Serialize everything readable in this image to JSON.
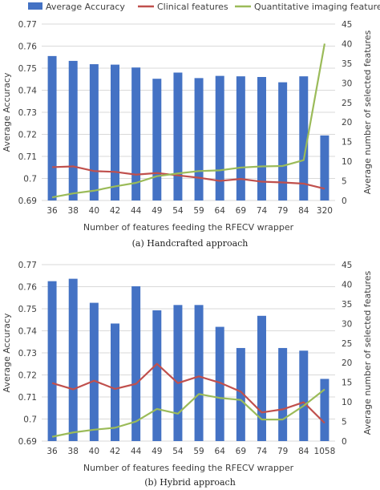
{
  "colors": {
    "bar": "#4472C4",
    "clinical": "#C0504D",
    "imaging": "#9BBB59",
    "grid": "#D9D9D9",
    "text": "#404040"
  },
  "legend": {
    "accuracy": "Average Accuracy",
    "clinical": "Clinical features",
    "imaging": "Quantitative imaging features"
  },
  "chart_data": [
    {
      "type": "bar",
      "caption": "(a) Handcrafted approach",
      "categories": [
        "36",
        "38",
        "40",
        "42",
        "44",
        "49",
        "54",
        "59",
        "64",
        "69",
        "74",
        "79",
        "84",
        "320"
      ],
      "xlabel": "Number of features feeding the RFECV wrapper",
      "ylabel": "Average Accuracy",
      "y2label": "Average number of selected features",
      "ylim": [
        0.69,
        0.77
      ],
      "yticks": [
        "0.69",
        "0.7",
        "0.71",
        "0.72",
        "0.73",
        "0.74",
        "0.75",
        "0.76",
        "0.77"
      ],
      "y2lim": [
        0,
        45
      ],
      "y2ticks": [
        "0",
        "5",
        "10",
        "15",
        "20",
        "25",
        "30",
        "35",
        "40",
        "45"
      ],
      "series": [
        {
          "name": "Average Accuracy",
          "type": "bar",
          "axis": "left",
          "values": [
            0.7555,
            0.7533,
            0.7518,
            0.7516,
            0.7503,
            0.7452,
            0.748,
            0.7455,
            0.7465,
            0.7463,
            0.746,
            0.7436,
            0.7463,
            0.7195
          ]
        },
        {
          "name": "Clinical features",
          "type": "line",
          "axis": "right",
          "values": [
            8.5,
            8.7,
            7.5,
            7.3,
            6.6,
            7.0,
            6.4,
            5.8,
            5.0,
            5.5,
            4.8,
            4.6,
            4.3,
            3.0
          ]
        },
        {
          "name": "Quantitative imaging features",
          "type": "line",
          "axis": "right",
          "values": [
            0.8,
            1.8,
            2.5,
            3.6,
            4.5,
            6.2,
            6.9,
            7.5,
            7.7,
            8.4,
            8.7,
            8.8,
            10.3,
            40.0
          ]
        }
      ]
    },
    {
      "type": "bar",
      "caption": "(b) Hybrid approach",
      "categories": [
        "36",
        "38",
        "40",
        "42",
        "44",
        "49",
        "54",
        "59",
        "64",
        "69",
        "74",
        "79",
        "84",
        "1058"
      ],
      "xlabel": "Number of features feeding the RFECV wrapper",
      "ylabel": "Average Accuracy",
      "y2label": "Average number of selected features",
      "ylim": [
        0.69,
        0.77
      ],
      "yticks": [
        "0.69",
        "0.7",
        "0.71",
        "0.72",
        "0.73",
        "0.74",
        "0.75",
        "0.76",
        "0.77"
      ],
      "y2lim": [
        0,
        45
      ],
      "y2ticks": [
        "0",
        "5",
        "10",
        "15",
        "20",
        "25",
        "30",
        "35",
        "40",
        "45"
      ],
      "series": [
        {
          "name": "Average Accuracy",
          "type": "bar",
          "axis": "left",
          "values": [
            0.7625,
            0.7636,
            0.7527,
            0.7433,
            0.7602,
            0.7493,
            0.7517,
            0.7517,
            0.7418,
            0.7322,
            0.7468,
            0.7322,
            0.731,
            0.7182
          ]
        },
        {
          "name": "Clinical features",
          "type": "line",
          "axis": "right",
          "values": [
            14.8,
            13.2,
            15.4,
            13.3,
            14.6,
            19.7,
            14.8,
            16.5,
            14.9,
            12.6,
            7.3,
            8.1,
            9.9,
            4.6
          ]
        },
        {
          "name": "Quantitative imaging features",
          "type": "line",
          "axis": "right",
          "values": [
            1.1,
            2.2,
            2.9,
            3.4,
            5.0,
            8.2,
            7.0,
            12.0,
            11.0,
            10.5,
            5.5,
            5.5,
            9.0,
            13.2
          ]
        }
      ]
    }
  ]
}
